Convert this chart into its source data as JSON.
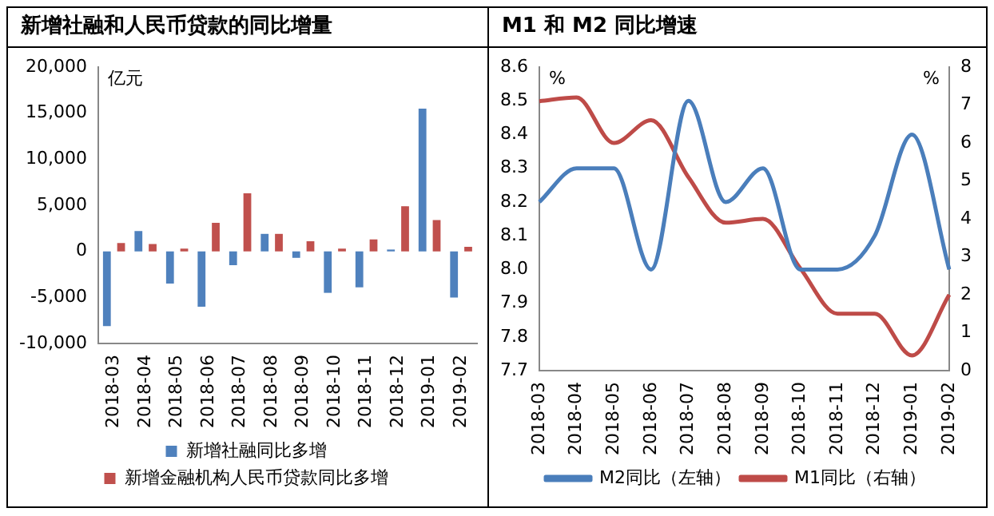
{
  "chart_data": [
    {
      "type": "bar",
      "title": "新增社融和人民币贷款的同比增量",
      "ylabel": "亿元",
      "categories": [
        "2018-03",
        "2018-04",
        "2018-05",
        "2018-06",
        "2018-07",
        "2018-08",
        "2018-09",
        "2018-10",
        "2018-11",
        "2018-12",
        "2019-01",
        "2019-02"
      ],
      "series": [
        {
          "name": "新增社融同比多增",
          "color": "#4f81bd",
          "values": [
            -8100,
            2200,
            -3500,
            -6000,
            -1500,
            1900,
            -700,
            -4500,
            -3900,
            200,
            15500,
            -5000
          ]
        },
        {
          "name": "新增金融机构人民币贷款同比多增",
          "color": "#c0504d",
          "values": [
            900,
            800,
            300,
            3100,
            6300,
            1900,
            1100,
            300,
            1300,
            4900,
            3400,
            500
          ]
        }
      ],
      "ylim": [
        -10000,
        20000
      ],
      "yticks": [
        {
          "value": -10000,
          "label": "-10,000"
        },
        {
          "value": -5000,
          "label": "-5,000"
        },
        0,
        {
          "value": 5000,
          "label": "5,000"
        },
        {
          "value": 10000,
          "label": "10,000"
        },
        {
          "value": 15000,
          "label": "15,000"
        },
        {
          "value": 20000,
          "label": "20,000"
        }
      ],
      "grid": false,
      "legend": "bottom"
    },
    {
      "type": "line",
      "title": "M1 和 M2 同比增速",
      "ylabel": "%",
      "y2label": "%",
      "categories": [
        "2018-03",
        "2018-04",
        "2018-05",
        "2018-06",
        "2018-07",
        "2018-08",
        "2018-09",
        "2018-10",
        "2018-11",
        "2018-12",
        "2019-01",
        "2019-02"
      ],
      "series": [
        {
          "name": "M2同比（左轴）",
          "color": "#4a7ebb",
          "values": [
            8.2,
            8.3,
            8.3,
            8.0,
            8.5,
            8.2,
            8.3,
            8.0,
            8.0,
            8.1,
            8.4,
            8.0
          ]
        },
        {
          "name": "M1同比（右轴）",
          "color": "#be4b48",
          "axis": "y2",
          "values": [
            7.1,
            7.2,
            6.0,
            6.6,
            5.1,
            3.9,
            4.0,
            2.7,
            1.5,
            1.5,
            0.4,
            2.0
          ]
        }
      ],
      "ylim": [
        7.7,
        8.6
      ],
      "yticks": [
        {
          "value": 7.7,
          "label": "7.7"
        },
        {
          "value": 7.8,
          "label": "7.8"
        },
        {
          "value": 7.9,
          "label": "7.9"
        },
        {
          "value": 8.0,
          "label": "8.0"
        },
        {
          "value": 8.1,
          "label": "8.1"
        },
        {
          "value": 8.2,
          "label": "8.2"
        },
        {
          "value": 8.3,
          "label": "8.3"
        },
        {
          "value": 8.4,
          "label": "8.4"
        },
        {
          "value": 8.5,
          "label": "8.5"
        },
        {
          "value": 8.6,
          "label": "8.6"
        }
      ],
      "y2lim": [
        0,
        8
      ],
      "y2ticks": [
        0,
        1,
        2,
        3,
        4,
        5,
        6,
        7,
        8
      ],
      "grid": false,
      "legend": "bottom",
      "marker": "none",
      "line_style": "solid"
    }
  ]
}
